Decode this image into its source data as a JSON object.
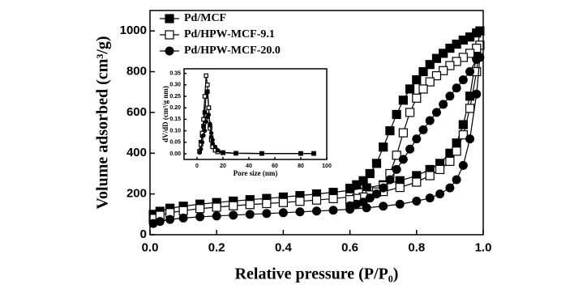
{
  "chart_data": [
    {
      "type": "line",
      "x_label": "Relative pressure (P/P₀)",
      "y_label": "Volume adsorbed (cm³/g)",
      "xlim": [
        0,
        1
      ],
      "ylim": [
        0,
        1100
      ],
      "xticks": [
        {
          "value": 0,
          "label": "0.0"
        },
        {
          "value": 0.2,
          "label": "0.2"
        },
        {
          "value": 0.4,
          "label": "0.4"
        },
        {
          "value": 0.6,
          "label": "0.6"
        },
        {
          "value": 0.8,
          "label": "0.8"
        },
        {
          "value": 1,
          "label": "1.0"
        }
      ],
      "yticks": [
        0,
        200,
        400,
        600,
        800,
        1000
      ],
      "legend": "upper left",
      "series": [
        {
          "name": "Pd/MCF",
          "color": "#000000",
          "marker": "filled-square",
          "x": [
            0.01,
            0.03,
            0.06,
            0.1,
            0.15,
            0.2,
            0.25,
            0.3,
            0.35,
            0.4,
            0.45,
            0.5,
            0.55,
            0.6,
            0.65,
            0.7,
            0.75,
            0.8,
            0.84,
            0.87,
            0.9,
            0.92,
            0.94,
            0.96,
            0.98,
            0.99,
            0.98,
            0.96,
            0.94,
            0.92,
            0.9,
            0.88,
            0.86,
            0.84,
            0.82,
            0.8,
            0.78,
            0.76,
            0.74,
            0.72,
            0.7,
            0.68,
            0.66,
            0.64,
            0.62,
            0.6
          ],
          "values": [
            100,
            115,
            130,
            140,
            150,
            158,
            165,
            172,
            178,
            185,
            192,
            200,
            208,
            218,
            230,
            245,
            265,
            290,
            320,
            350,
            400,
            450,
            540,
            680,
            880,
            1000,
            990,
            970,
            955,
            935,
            915,
            890,
            865,
            835,
            800,
            760,
            715,
            660,
            590,
            510,
            430,
            350,
            300,
            265,
            245,
            228
          ]
        },
        {
          "name": "Pd/HPW-MCF-9.1",
          "color": "#000000",
          "marker": "open-square",
          "x": [
            0.01,
            0.03,
            0.06,
            0.1,
            0.15,
            0.2,
            0.25,
            0.3,
            0.35,
            0.4,
            0.45,
            0.5,
            0.55,
            0.6,
            0.65,
            0.7,
            0.75,
            0.8,
            0.84,
            0.87,
            0.9,
            0.92,
            0.94,
            0.96,
            0.98,
            0.99,
            0.98,
            0.96,
            0.94,
            0.92,
            0.9,
            0.88,
            0.86,
            0.84,
            0.82,
            0.8,
            0.78,
            0.76,
            0.74,
            0.72,
            0.7,
            0.68,
            0.66,
            0.64,
            0.62,
            0.6
          ],
          "values": [
            80,
            95,
            108,
            118,
            128,
            135,
            142,
            148,
            153,
            158,
            164,
            170,
            177,
            186,
            197,
            212,
            232,
            258,
            290,
            320,
            360,
            410,
            490,
            620,
            800,
            930,
            915,
            890,
            870,
            850,
            830,
            805,
            780,
            750,
            715,
            670,
            600,
            500,
            390,
            300,
            240,
            210,
            195,
            185,
            178,
            172
          ]
        },
        {
          "name": "Pd/HPW-MCF-20.0",
          "color": "#000000",
          "marker": "filled-circle",
          "x": [
            0.01,
            0.03,
            0.06,
            0.1,
            0.15,
            0.2,
            0.25,
            0.3,
            0.35,
            0.4,
            0.45,
            0.5,
            0.55,
            0.6,
            0.65,
            0.7,
            0.75,
            0.8,
            0.84,
            0.87,
            0.9,
            0.92,
            0.94,
            0.96,
            0.98,
            0.99,
            0.98,
            0.96,
            0.94,
            0.92,
            0.9,
            0.88,
            0.86,
            0.84,
            0.82,
            0.8,
            0.78,
            0.76,
            0.74,
            0.72,
            0.7,
            0.68,
            0.66,
            0.64,
            0.62,
            0.6
          ],
          "values": [
            55,
            65,
            75,
            82,
            88,
            92,
            96,
            100,
            104,
            108,
            112,
            116,
            120,
            125,
            132,
            140,
            150,
            165,
            180,
            200,
            230,
            270,
            340,
            470,
            690,
            870,
            860,
            800,
            760,
            720,
            680,
            640,
            600,
            560,
            515,
            470,
            420,
            370,
            320,
            270,
            230,
            200,
            180,
            160,
            150,
            142
          ]
        }
      ]
    },
    {
      "type": "line",
      "x_label": "Pore size (nm)",
      "y_label": "dV/dD (cm³/g nm)",
      "xlim": [
        -10,
        100
      ],
      "ylim": [
        -0.025,
        0.37
      ],
      "xticks": [
        0,
        20,
        40,
        60,
        80,
        100
      ],
      "yticks": [
        {
          "value": 0,
          "label": "0.00"
        },
        {
          "value": 0.05,
          "label": "0.05"
        },
        {
          "value": 0.1,
          "label": "0.10"
        },
        {
          "value": 0.15,
          "label": "0.15"
        },
        {
          "value": 0.2,
          "label": "0.20"
        },
        {
          "value": 0.25,
          "label": "0.25"
        },
        {
          "value": 0.3,
          "label": "0.30"
        },
        {
          "value": 0.35,
          "label": "0.35"
        }
      ],
      "series": [
        {
          "name": "Pd/MCF",
          "color": "#000000",
          "marker": "filled-square",
          "x": [
            2,
            3,
            4,
            5,
            6,
            7,
            8,
            9,
            10,
            11,
            12,
            14,
            16,
            20,
            30,
            50,
            80,
            90
          ],
          "values": [
            0.01,
            0.05,
            0.08,
            0.12,
            0.18,
            0.25,
            0.27,
            0.2,
            0.12,
            0.07,
            0.04,
            0.02,
            0.01,
            0.005,
            0.002,
            0.001,
            0.001,
            0.001
          ]
        },
        {
          "name": "Pd/HPW-MCF-9.1",
          "color": "#000000",
          "marker": "open-square",
          "x": [
            2,
            3,
            4,
            5,
            6,
            7,
            8,
            9,
            10,
            11,
            12,
            14,
            16,
            20,
            30,
            50,
            80,
            90
          ],
          "values": [
            0.01,
            0.04,
            0.09,
            0.15,
            0.25,
            0.34,
            0.3,
            0.2,
            0.11,
            0.06,
            0.03,
            0.015,
            0.008,
            0.004,
            0.002,
            0.001,
            0.001,
            0.001
          ]
        },
        {
          "name": "Pd/HPW-MCF-20.0",
          "color": "#000000",
          "marker": "filled-circle",
          "x": [
            2,
            3,
            4,
            5,
            6,
            7,
            8,
            9,
            10,
            11,
            12,
            14,
            16,
            20,
            30,
            50,
            80,
            90
          ],
          "values": [
            0.005,
            0.02,
            0.05,
            0.08,
            0.1,
            0.14,
            0.16,
            0.17,
            0.13,
            0.09,
            0.06,
            0.03,
            0.015,
            0.006,
            0.002,
            0.001,
            0.001,
            0.001
          ]
        }
      ]
    }
  ]
}
